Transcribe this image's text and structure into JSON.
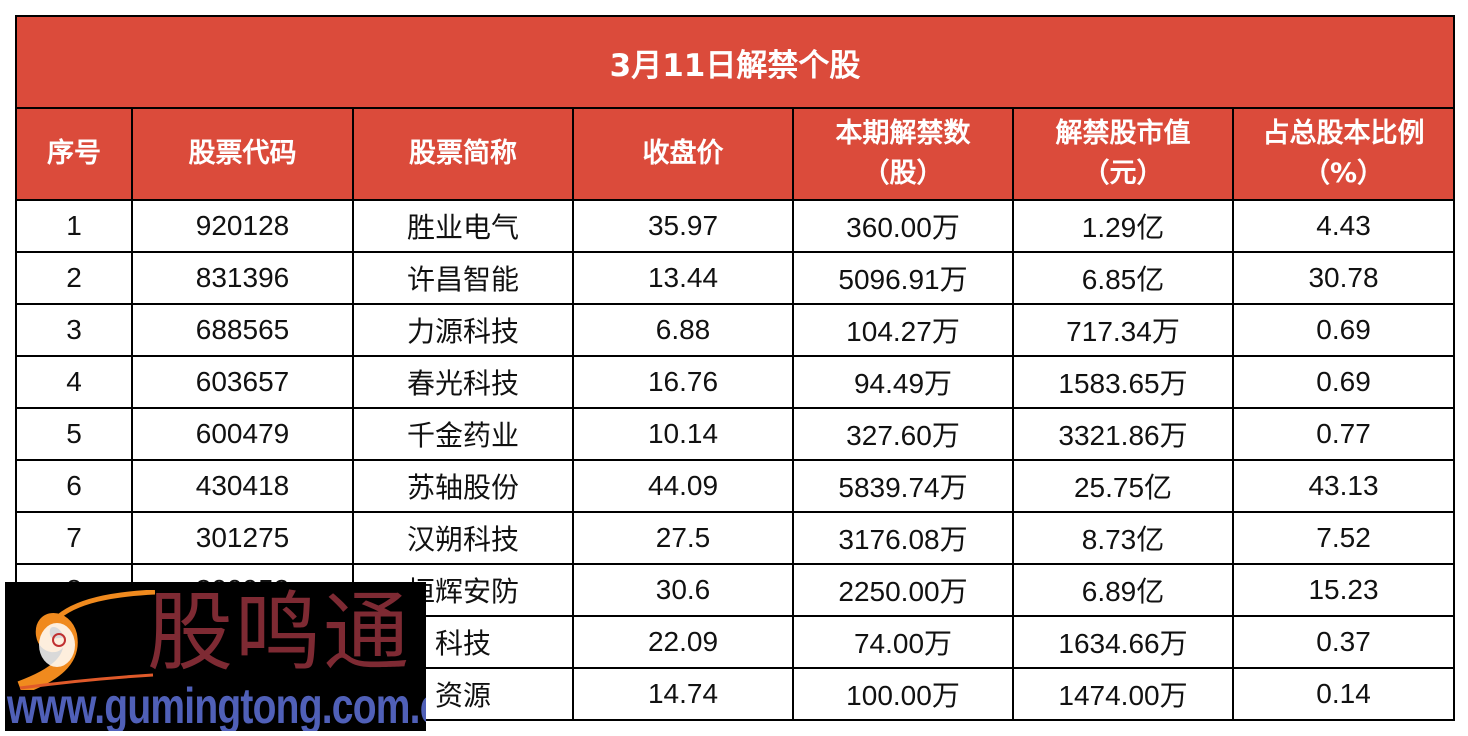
{
  "table": {
    "title": "3月11日解禁个股",
    "colors": {
      "header_bg": "#DB4B3B",
      "header_text": "#FFFFFF",
      "border": "#000000"
    },
    "columns": [
      {
        "line1": "序号",
        "line2": ""
      },
      {
        "line1": "股票代码",
        "line2": ""
      },
      {
        "line1": "股票简称",
        "line2": ""
      },
      {
        "line1": "收盘价",
        "line2": ""
      },
      {
        "line1": "本期解禁数",
        "line2": "（股）"
      },
      {
        "line1": "解禁股市值",
        "line2": "（元）"
      },
      {
        "line1": "占总股本比例",
        "line2": "（%）"
      }
    ],
    "rows": [
      {
        "no": "1",
        "code": "920128",
        "name": "胜业电气",
        "close": "35.97",
        "shares": "360.00万",
        "value": "1.29亿",
        "ratio": "4.43"
      },
      {
        "no": "2",
        "code": "831396",
        "name": "许昌智能",
        "close": "13.44",
        "shares": "5096.91万",
        "value": "6.85亿",
        "ratio": "30.78"
      },
      {
        "no": "3",
        "code": "688565",
        "name": "力源科技",
        "close": "6.88",
        "shares": "104.27万",
        "value": "717.34万",
        "ratio": "0.69"
      },
      {
        "no": "4",
        "code": "603657",
        "name": "春光科技",
        "close": "16.76",
        "shares": "94.49万",
        "value": "1583.65万",
        "ratio": "0.69"
      },
      {
        "no": "5",
        "code": "600479",
        "name": "千金药业",
        "close": "10.14",
        "shares": "327.60万",
        "value": "3321.86万",
        "ratio": "0.77"
      },
      {
        "no": "6",
        "code": "430418",
        "name": "苏轴股份",
        "close": "44.09",
        "shares": "5839.74万",
        "value": "25.75亿",
        "ratio": "43.13"
      },
      {
        "no": "7",
        "code": "301275",
        "name": "汉朔科技",
        "close": "27.5",
        "shares": "3176.08万",
        "value": "8.73亿",
        "ratio": "7.52"
      },
      {
        "no": "8",
        "code": "300952",
        "name": "恒辉安防",
        "close": "30.6",
        "shares": "2250.00万",
        "value": "6.89亿",
        "ratio": "15.23"
      },
      {
        "no": "",
        "code": "",
        "name": "科技",
        "close": "22.09",
        "shares": "74.00万",
        "value": "1634.66万",
        "ratio": "0.37"
      },
      {
        "no": "",
        "code": "",
        "name": "资源",
        "close": "14.74",
        "shares": "100.00万",
        "value": "1474.00万",
        "ratio": "0.14"
      }
    ]
  },
  "watermark": {
    "brand": "股鸣通",
    "url": "www.gumingtong.com.cn",
    "colors": {
      "bg": "#000000",
      "brand": "#7E2A33",
      "url": "#5060B8",
      "swirl": "#F08A1E"
    }
  }
}
